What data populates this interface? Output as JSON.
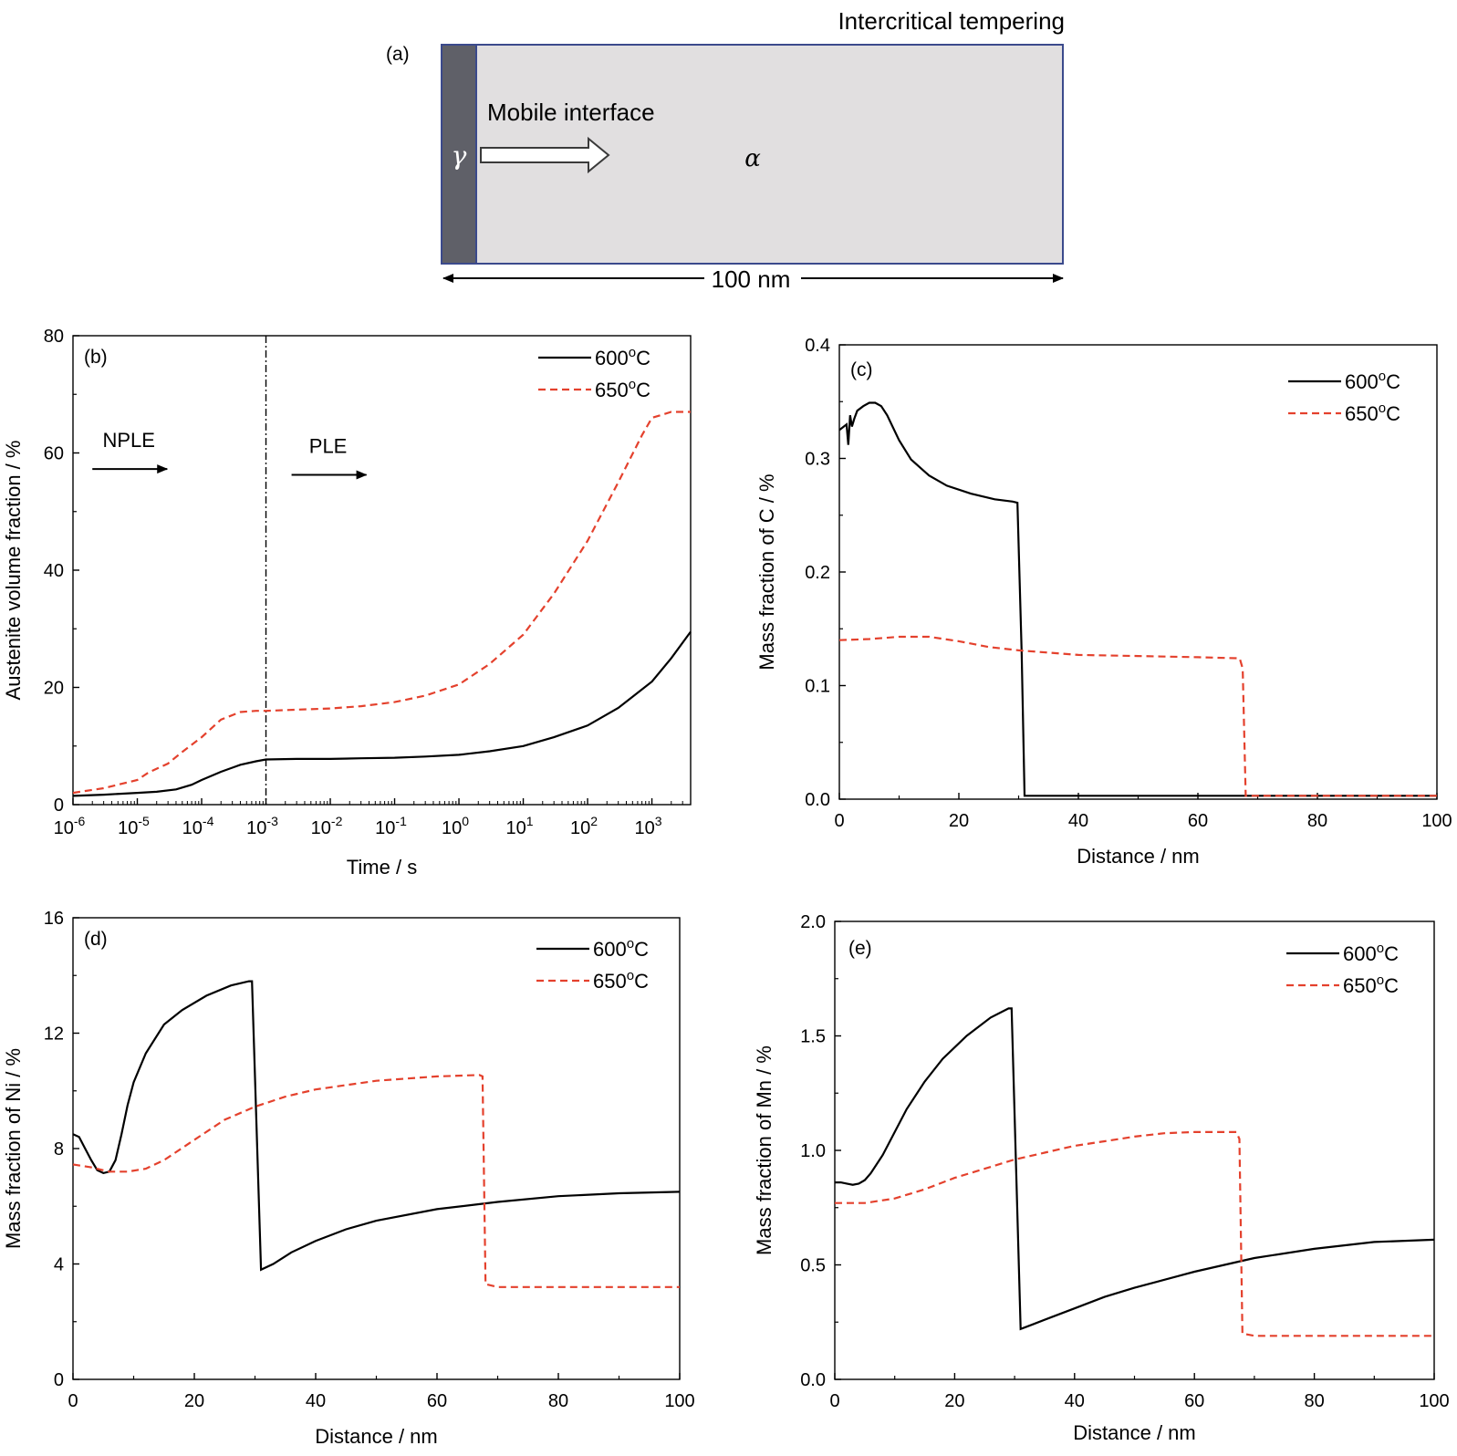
{
  "schematic": {
    "panel_label": "(a)",
    "title": "Intercritical tempering",
    "gamma_symbol": "γ",
    "alpha_symbol": "α",
    "interface_label": "Mobile interface",
    "length_label": "100 nm",
    "colors": {
      "gamma_fill": "#5f6068",
      "alpha_fill": "#e1dfe0",
      "border": "#3b4a8c"
    }
  },
  "colors": {
    "s600": "#000000",
    "s650": "#e4412d"
  },
  "chart_data": [
    {
      "id": "b",
      "panel_label": "(b)",
      "type": "line",
      "xscale": "log",
      "xlabel": "Time / s",
      "ylabel": "Austenite volume fraction / %",
      "xlim": [
        1e-06,
        4000
      ],
      "ylim": [
        0,
        80
      ],
      "xticks": [
        1e-06,
        1e-05,
        0.0001,
        0.001,
        0.01,
        0.1,
        1,
        10,
        100,
        1000
      ],
      "xtick_labels": [
        {
          "base": "10",
          "exp": "-6"
        },
        {
          "base": "10",
          "exp": "-5"
        },
        {
          "base": "10",
          "exp": "-4"
        },
        {
          "base": "10",
          "exp": "-3"
        },
        {
          "base": "10",
          "exp": "-2"
        },
        {
          "base": "10",
          "exp": "-1"
        },
        {
          "base": "10",
          "exp": "0"
        },
        {
          "base": "10",
          "exp": "1"
        },
        {
          "base": "10",
          "exp": "2"
        },
        {
          "base": "10",
          "exp": "3"
        }
      ],
      "yticks": [
        0,
        20,
        40,
        60,
        80
      ],
      "ytick_labels": [
        "0",
        "20",
        "40",
        "60",
        "80"
      ],
      "vline": 0.001,
      "annotations": [
        {
          "text": "NPLE",
          "x": 2e-06,
          "y": 61
        },
        {
          "text": "PLE",
          "x": 0.0025,
          "y": 60
        }
      ],
      "legend": "top-right",
      "series": [
        {
          "name": "600°C",
          "label_base": "600",
          "label_sup": "o",
          "label_unit": "C",
          "style": "solid",
          "x": [
            1e-06,
            3e-06,
            1e-05,
            2e-05,
            4e-05,
            7e-05,
            0.0001,
            0.0002,
            0.0004,
            0.0007,
            0.001,
            0.003,
            0.01,
            0.03,
            0.1,
            0.3,
            1,
            3,
            10,
            30,
            100,
            300,
            1000,
            2000,
            4000
          ],
          "y": [
            1.5,
            1.7,
            2.0,
            2.2,
            2.6,
            3.4,
            4.2,
            5.6,
            6.8,
            7.4,
            7.7,
            7.8,
            7.8,
            7.9,
            8.0,
            8.2,
            8.5,
            9.1,
            10.0,
            11.5,
            13.5,
            16.5,
            21.0,
            25.0,
            29.5
          ]
        },
        {
          "name": "650°C",
          "label_base": "650",
          "label_sup": "o",
          "label_unit": "C",
          "style": "dashed",
          "x": [
            1e-06,
            3e-06,
            1e-05,
            1.5e-05,
            3e-05,
            5e-05,
            0.0001,
            0.0002,
            0.0004,
            0.0007,
            0.001,
            0.003,
            0.01,
            0.03,
            0.1,
            0.3,
            1,
            3,
            10,
            30,
            100,
            300,
            700,
            1000,
            2000,
            4000
          ],
          "y": [
            2.0,
            2.8,
            4.2,
            5.5,
            7.0,
            9.0,
            11.5,
            14.5,
            15.8,
            16.0,
            16.0,
            16.2,
            16.4,
            16.8,
            17.5,
            18.6,
            20.5,
            24.0,
            29.0,
            36.0,
            45.0,
            55.0,
            63.0,
            66.0,
            67.0,
            67.0
          ]
        }
      ]
    },
    {
      "id": "c",
      "panel_label": "(c)",
      "type": "line",
      "xlabel": "Distance / nm",
      "ylabel": "Mass fraction of C / %",
      "xlim": [
        0,
        100
      ],
      "ylim": [
        0,
        0.4
      ],
      "xticks": [
        0,
        20,
        40,
        60,
        80,
        100
      ],
      "xtick_labels": [
        "0",
        "20",
        "40",
        "60",
        "80",
        "100"
      ],
      "yticks": [
        0,
        0.1,
        0.2,
        0.3,
        0.4
      ],
      "ytick_labels": [
        "0.0",
        "0.1",
        "0.2",
        "0.3",
        "0.4"
      ],
      "legend": "top-right",
      "series": [
        {
          "name": "600°C",
          "label_base": "600",
          "label_sup": "o",
          "label_unit": "C",
          "style": "solid",
          "x": [
            0,
            1.2,
            1.5,
            1.8,
            2.1,
            2.5,
            3,
            4,
            5,
            6,
            7,
            8,
            10,
            12,
            15,
            18,
            22,
            26,
            29,
            29.8,
            30.5,
            31,
            35,
            40,
            60,
            80,
            100
          ],
          "y": [
            0.325,
            0.33,
            0.312,
            0.338,
            0.328,
            0.335,
            0.342,
            0.346,
            0.349,
            0.349,
            0.346,
            0.338,
            0.316,
            0.299,
            0.285,
            0.276,
            0.269,
            0.264,
            0.262,
            0.261,
            0.13,
            0.003,
            0.003,
            0.003,
            0.003,
            0.003,
            0.003
          ]
        },
        {
          "name": "650°C",
          "label_base": "650",
          "label_sup": "o",
          "label_unit": "C",
          "style": "dashed",
          "x": [
            0,
            5,
            10,
            15,
            20,
            25,
            30,
            35,
            40,
            50,
            60,
            67,
            67.5,
            68,
            70,
            80,
            90,
            100
          ],
          "y": [
            0.14,
            0.141,
            0.143,
            0.143,
            0.139,
            0.134,
            0.131,
            0.129,
            0.127,
            0.126,
            0.125,
            0.124,
            0.115,
            0.003,
            0.003,
            0.003,
            0.003,
            0.003
          ]
        }
      ]
    },
    {
      "id": "d",
      "panel_label": "(d)",
      "type": "line",
      "xlabel": "Distance / nm",
      "ylabel": "Mass fraction of Ni / %",
      "xlim": [
        0,
        100
      ],
      "ylim": [
        0,
        16
      ],
      "xticks": [
        0,
        20,
        40,
        60,
        80,
        100
      ],
      "xtick_labels": [
        "0",
        "20",
        "40",
        "60",
        "80",
        "100"
      ],
      "yticks": [
        0,
        4,
        8,
        12,
        16
      ],
      "ytick_labels": [
        "0",
        "4",
        "8",
        "12",
        "16"
      ],
      "legend": "top-right",
      "series": [
        {
          "name": "600°C",
          "label_base": "600",
          "label_sup": "o",
          "label_unit": "C",
          "style": "solid",
          "x": [
            0,
            1,
            2,
            3,
            4,
            5,
            6,
            7,
            8,
            9,
            10,
            12,
            15,
            18,
            22,
            26,
            29,
            29.5,
            31,
            33,
            36,
            40,
            45,
            50,
            60,
            70,
            80,
            90,
            100
          ],
          "y": [
            8.5,
            8.4,
            8.0,
            7.6,
            7.25,
            7.15,
            7.2,
            7.6,
            8.5,
            9.5,
            10.3,
            11.3,
            12.3,
            12.8,
            13.3,
            13.65,
            13.8,
            13.8,
            3.8,
            4.0,
            4.4,
            4.8,
            5.2,
            5.5,
            5.9,
            6.15,
            6.35,
            6.45,
            6.5
          ]
        },
        {
          "name": "650°C",
          "label_base": "650",
          "label_sup": "o",
          "label_unit": "C",
          "style": "dashed",
          "x": [
            0,
            3,
            6,
            9,
            12,
            15,
            20,
            25,
            30,
            35,
            40,
            50,
            60,
            67,
            67.5,
            68,
            70,
            80,
            90,
            100
          ],
          "y": [
            7.45,
            7.35,
            7.2,
            7.2,
            7.3,
            7.6,
            8.3,
            9.0,
            9.45,
            9.8,
            10.05,
            10.35,
            10.5,
            10.55,
            10.5,
            3.3,
            3.2,
            3.2,
            3.2,
            3.2
          ]
        }
      ]
    },
    {
      "id": "e",
      "panel_label": "(e)",
      "type": "line",
      "xlabel": "Distance / nm",
      "ylabel": "Mass fraction of Mn / %",
      "xlim": [
        0,
        100
      ],
      "ylim": [
        0,
        2.0
      ],
      "xticks": [
        0,
        20,
        40,
        60,
        80,
        100
      ],
      "xtick_labels": [
        "0",
        "20",
        "40",
        "60",
        "80",
        "100"
      ],
      "yticks": [
        0,
        0.5,
        1.0,
        1.5,
        2.0
      ],
      "ytick_labels": [
        "0.0",
        "0.5",
        "1.0",
        "1.5",
        "2.0"
      ],
      "legend": "top-right",
      "series": [
        {
          "name": "600°C",
          "label_base": "600",
          "label_sup": "o",
          "label_unit": "C",
          "style": "solid",
          "x": [
            0,
            1,
            2,
            3,
            4,
            5,
            6,
            8,
            10,
            12,
            15,
            18,
            22,
            26,
            29,
            29.5,
            31,
            33,
            36,
            40,
            45,
            50,
            60,
            70,
            80,
            90,
            100
          ],
          "y": [
            0.86,
            0.86,
            0.855,
            0.85,
            0.855,
            0.87,
            0.9,
            0.98,
            1.08,
            1.18,
            1.3,
            1.4,
            1.5,
            1.58,
            1.62,
            1.62,
            0.22,
            0.24,
            0.27,
            0.31,
            0.36,
            0.4,
            0.47,
            0.53,
            0.57,
            0.6,
            0.61
          ]
        },
        {
          "name": "650°C",
          "label_base": "650",
          "label_sup": "o",
          "label_unit": "C",
          "style": "dashed",
          "x": [
            0,
            5,
            10,
            15,
            20,
            25,
            30,
            35,
            40,
            45,
            50,
            55,
            60,
            67,
            67.5,
            68,
            70,
            75,
            80,
            90,
            100
          ],
          "y": [
            0.77,
            0.77,
            0.79,
            0.83,
            0.88,
            0.92,
            0.96,
            0.99,
            1.02,
            1.04,
            1.06,
            1.075,
            1.08,
            1.08,
            1.05,
            0.2,
            0.19,
            0.19,
            0.19,
            0.19,
            0.19
          ]
        }
      ]
    }
  ]
}
